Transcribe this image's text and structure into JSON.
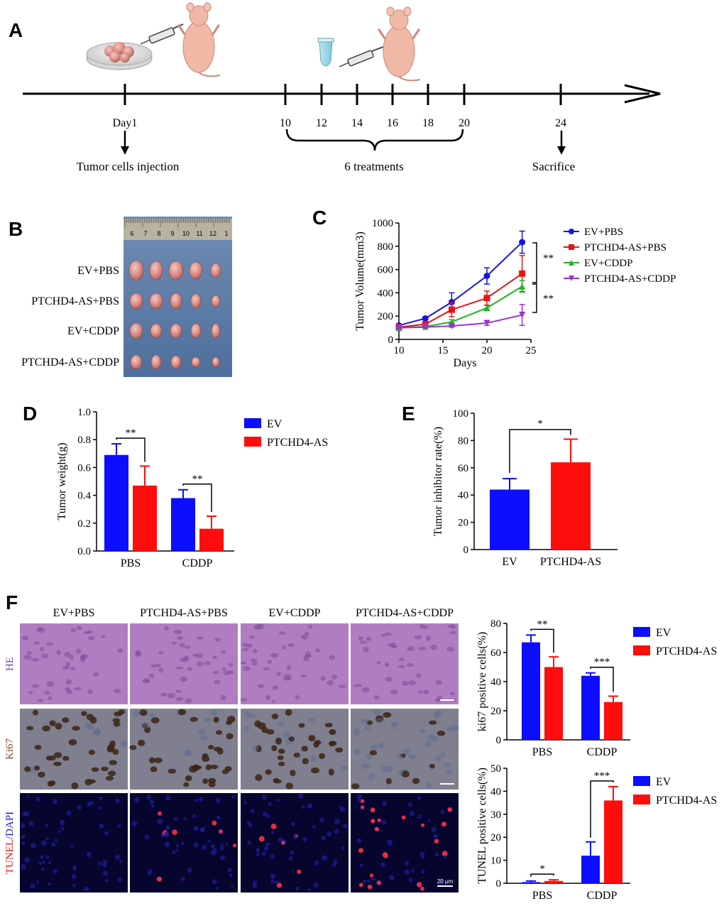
{
  "panels": {
    "a": "A",
    "b": "B",
    "c": "C",
    "d": "D",
    "e": "E",
    "f": "F"
  },
  "timeline": {
    "ticks": [
      {
        "day": 1,
        "label": "Day1"
      },
      {
        "day": 10,
        "label": "10"
      },
      {
        "day": 12,
        "label": "12"
      },
      {
        "day": 14,
        "label": "14"
      },
      {
        "day": 16,
        "label": "16"
      },
      {
        "day": 18,
        "label": "18"
      },
      {
        "day": 20,
        "label": "20"
      },
      {
        "day": 24,
        "label": "24"
      }
    ],
    "injection_label": "Tumor cells injection",
    "treatments_label": "6 treatments",
    "sacrifice_label": "Sacrifice"
  },
  "photo": {
    "ruler_numbers": [
      "6",
      "7",
      "8",
      "9",
      "10",
      "11",
      "12",
      "1"
    ],
    "row_labels": [
      "EV+PBS",
      "PTCHD4-AS+PBS",
      "EV+CDDP",
      "PTCHD4-AS+CDDP"
    ],
    "tumor_counts": [
      5,
      5,
      5,
      5
    ]
  },
  "colors": {
    "blue": "#1414e6",
    "red": "#e61414",
    "green": "#22b422",
    "purple": "#9a32d2",
    "bar_blue": "#0d0dff",
    "bar_red": "#ff0d0d",
    "he_bg": "#b07ec0",
    "ki67_bg": "#7f7f90",
    "tunel_bg": "#05052e"
  },
  "chart_data": [
    {
      "type": "line",
      "panel": "C",
      "xlabel": "Days",
      "ylabel": "Tumor Volume(mm3)",
      "xlim": [
        10,
        25
      ],
      "ylim": [
        0,
        1000
      ],
      "xticks": [
        10,
        15,
        20,
        25
      ],
      "yticks": [
        0,
        200,
        400,
        600,
        800,
        1000
      ],
      "x": [
        10,
        13,
        16,
        20,
        24
      ],
      "series": [
        {
          "name": "EV+PBS",
          "color": "#1414e6",
          "marker": "circle",
          "values": [
            120,
            180,
            320,
            545,
            835
          ],
          "errors": [
            5,
            10,
            80,
            70,
            95
          ]
        },
        {
          "name": "PTCHD4-AS+PBS",
          "color": "#e61414",
          "marker": "square",
          "values": [
            105,
            130,
            255,
            355,
            565
          ],
          "errors": [
            5,
            10,
            60,
            60,
            155
          ]
        },
        {
          "name": "EV+CDDP",
          "color": "#22b422",
          "marker": "triangle",
          "values": [
            100,
            110,
            150,
            270,
            455
          ],
          "errors": [
            5,
            5,
            20,
            20,
            50
          ]
        },
        {
          "name": "PTCHD4-AS+CDDP",
          "color": "#9a32d2",
          "marker": "triangle-down",
          "values": [
            100,
            105,
            115,
            140,
            210
          ],
          "errors": [
            5,
            5,
            10,
            20,
            90
          ]
        }
      ],
      "annotations": [
        "**",
        "**"
      ],
      "legend": "right"
    },
    {
      "type": "bar",
      "panel": "D",
      "ylabel": "Tumor weight(g)",
      "categories": [
        "PBS",
        "CDDP"
      ],
      "ylim": [
        0,
        1.0
      ],
      "yticks": [
        "0.0",
        "0.2",
        "0.4",
        "0.6",
        "0.8",
        "1.0"
      ],
      "series": [
        {
          "name": "EV",
          "color": "#0d0dff",
          "values": [
            0.69,
            0.38
          ],
          "errors": [
            0.08,
            0.06
          ]
        },
        {
          "name": "PTCHD4-AS",
          "color": "#ff0d0d",
          "values": [
            0.47,
            0.16
          ],
          "errors": [
            0.14,
            0.09
          ]
        }
      ],
      "annotations": [
        "**",
        "**"
      ],
      "legend": "right"
    },
    {
      "type": "bar",
      "panel": "E",
      "ylabel": "Tumor inhibitor rate(%)",
      "categories": [
        "EV",
        "PTCHD4-AS"
      ],
      "ylim": [
        0,
        100
      ],
      "yticks": [
        "0",
        "20",
        "40",
        "60",
        "80",
        "100"
      ],
      "values": [
        44,
        64
      ],
      "errors": [
        8,
        17
      ],
      "colors": [
        "#0d0dff",
        "#ff0d0d"
      ],
      "annotations": [
        "*"
      ]
    },
    {
      "type": "bar",
      "panel": "F-ki67",
      "ylabel": "ki67 positive cells(%)",
      "categories": [
        "PBS",
        "CDDP"
      ],
      "ylim": [
        0,
        80
      ],
      "yticks": [
        "0",
        "20",
        "40",
        "60",
        "80"
      ],
      "series": [
        {
          "name": "EV",
          "color": "#0d0dff",
          "values": [
            67,
            44
          ],
          "errors": [
            5,
            2
          ]
        },
        {
          "name": "PTCHD4-AS",
          "color": "#ff0d0d",
          "values": [
            50,
            26
          ],
          "errors": [
            7,
            4
          ]
        }
      ],
      "annotations": [
        "**",
        "***"
      ],
      "legend": "right"
    },
    {
      "type": "bar",
      "panel": "F-tunel",
      "ylabel": "TUNEL positive cells(%)",
      "categories": [
        "PBS",
        "CDDP"
      ],
      "ylim": [
        0,
        50
      ],
      "yticks": [
        "0",
        "10",
        "20",
        "30",
        "40",
        "50"
      ],
      "series": [
        {
          "name": "EV",
          "color": "#0d0dff",
          "values": [
            0.5,
            12
          ],
          "errors": [
            0.5,
            6
          ]
        },
        {
          "name": "PTCHD4-AS",
          "color": "#ff0d0d",
          "values": [
            1,
            36
          ],
          "errors": [
            0.5,
            6
          ]
        }
      ],
      "annotations": [
        "*",
        "***"
      ],
      "legend": "right"
    }
  ],
  "micrographs": {
    "columns": [
      "EV+PBS",
      "PTCHD4-AS+PBS",
      "EV+CDDP",
      "PTCHD4-AS+CDDP"
    ],
    "rows": [
      "HE",
      "Ki67",
      "TUNEL/DAPI"
    ],
    "tunel_label_part1": "TUNEL",
    "tunel_label_part2": "/DAPI",
    "scale_bar": "20 μm"
  }
}
